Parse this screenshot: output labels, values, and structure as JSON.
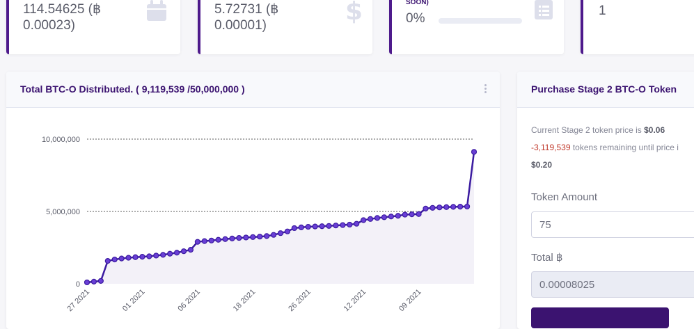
{
  "stats": [
    {
      "value_line1": "114.54625 (฿",
      "value_line2": "0.00023)",
      "icon": "calendar-icon"
    },
    {
      "value_line1": "5.72731 (฿",
      "value_line2": "0.00001)",
      "icon": "dollar-icon"
    },
    {
      "label": "SOON)",
      "value": "0%",
      "progress": 0,
      "icon": "clipboard-list-icon"
    },
    {
      "value": "1"
    }
  ],
  "chart_card": {
    "title": "Total BTC-O Distributed. ( 9,119,539 /50,000,000 )"
  },
  "chart_data": {
    "type": "area",
    "title": "Total BTC-O Distributed. ( 9,119,539 /50,000,000 )",
    "ylim": [
      0,
      10000000
    ],
    "y_ticks": [
      {
        "value": 0,
        "label": "0"
      },
      {
        "value": 5000000,
        "label": "5,000,000"
      },
      {
        "value": 10000000,
        "label": "10,000,000"
      }
    ],
    "x_tick_labels": [
      {
        "index": 0,
        "label": "27 2021"
      },
      {
        "index": 8,
        "label": "01 2021"
      },
      {
        "index": 16,
        "label": "06 2021"
      },
      {
        "index": 24,
        "label": "18 2021"
      },
      {
        "index": 32,
        "label": "26 2021"
      },
      {
        "index": 40,
        "label": "12 2021"
      },
      {
        "index": 48,
        "label": "09 2021"
      }
    ],
    "values": [
      100000,
      150000,
      200000,
      1580000,
      1680000,
      1750000,
      1800000,
      1840000,
      1870000,
      1900000,
      1950000,
      2000000,
      2080000,
      2150000,
      2250000,
      2350000,
      2900000,
      2950000,
      2990000,
      3040000,
      3090000,
      3130000,
      3170000,
      3200000,
      3230000,
      3260000,
      3300000,
      3380000,
      3500000,
      3620000,
      3850000,
      3900000,
      3940000,
      3960000,
      3980000,
      4000000,
      4030000,
      4060000,
      4090000,
      4150000,
      4400000,
      4480000,
      4550000,
      4600000,
      4650000,
      4700000,
      4780000,
      4800000,
      4820000,
      5200000,
      5250000,
      5280000,
      5300000,
      5320000,
      5330000,
      5340000,
      9119539
    ]
  },
  "purchase": {
    "title": "Purchase Stage 2 BTC-O Token",
    "price_prefix": "Current Stage 2 token price is ",
    "price": "$0.06",
    "remaining_count": "-3,119,539",
    "remaining_text": " tokens remaining until price i",
    "next_price": "$0.20",
    "token_amount_label": "Token Amount",
    "token_amount_value": "75",
    "total_label": "Total ฿",
    "total_value": "0.00008025"
  }
}
